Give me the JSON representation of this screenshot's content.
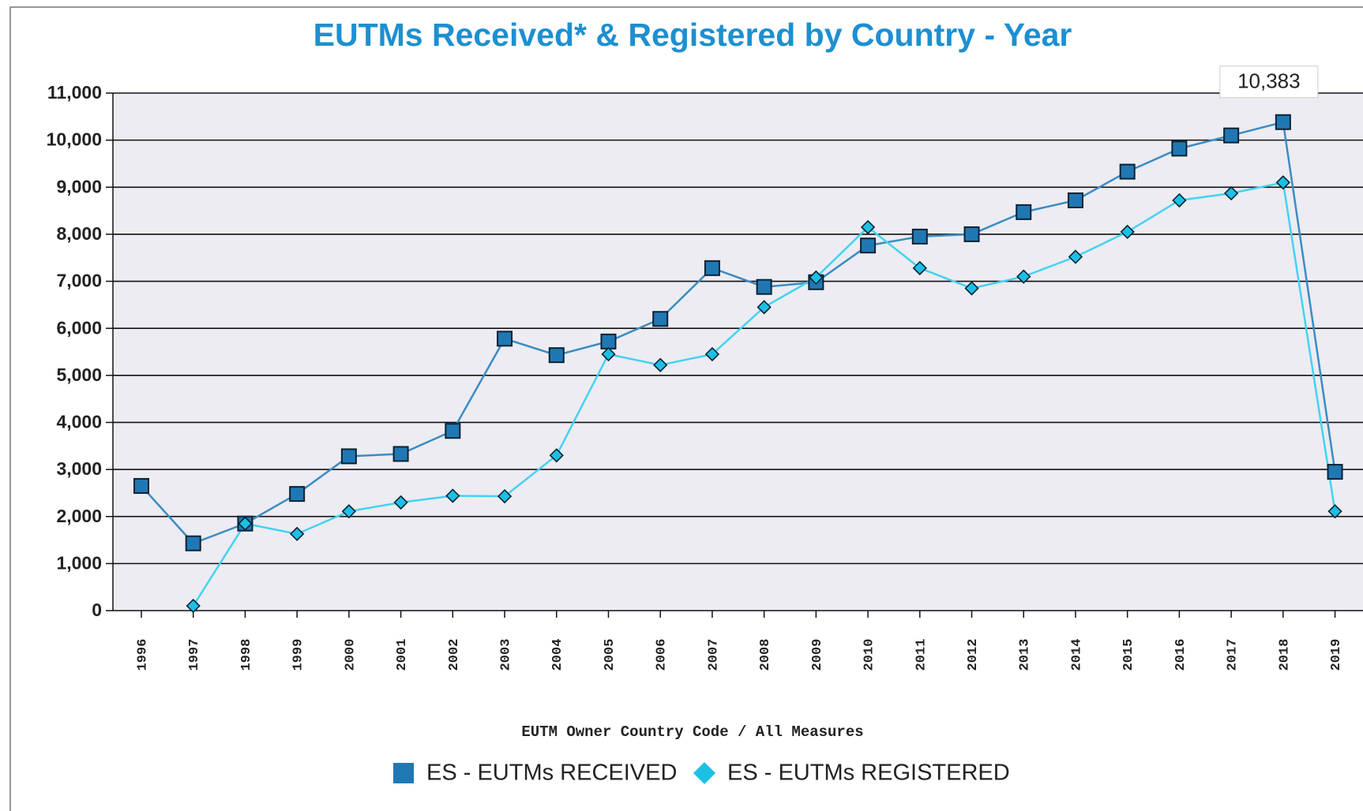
{
  "chart_data": {
    "type": "line",
    "title": "EUTMs Received* & Registered by Country - Year",
    "x_label": "EUTM Owner Country Code / All Measures",
    "categories": [
      "1996",
      "1997",
      "1998",
      "1999",
      "2000",
      "2001",
      "2002",
      "2003",
      "2004",
      "2005",
      "2006",
      "2007",
      "2008",
      "2009",
      "2010",
      "2011",
      "2012",
      "2013",
      "2014",
      "2015",
      "2016",
      "2017",
      "2018",
      "2019"
    ],
    "series": [
      {
        "name": "ES - EUTMs RECEIVED",
        "color": "#1f78b4",
        "line_color": "#3b8cc2",
        "marker": "square",
        "values": [
          2650,
          1430,
          1850,
          2480,
          3280,
          3330,
          3820,
          5780,
          5430,
          5720,
          6200,
          7280,
          6880,
          6980,
          7760,
          7950,
          8000,
          8470,
          8720,
          9330,
          9820,
          10100,
          10383,
          2950
        ],
        "value_labels": [
          null,
          null,
          null,
          null,
          null,
          null,
          null,
          null,
          null,
          null,
          null,
          null,
          null,
          null,
          null,
          null,
          null,
          null,
          null,
          null,
          null,
          null,
          "10,383",
          null
        ]
      },
      {
        "name": "ES - EUTMs REGISTERED",
        "color": "#1cc0e4",
        "line_color": "#44d2f2",
        "marker": "diamond",
        "values": [
          null,
          100,
          1850,
          1630,
          2110,
          2300,
          2440,
          2430,
          3300,
          5450,
          5220,
          5450,
          6450,
          7080,
          8150,
          7280,
          6850,
          7100,
          7520,
          8050,
          8720,
          8870,
          9100,
          2110
        ]
      }
    ],
    "ylim": [
      0,
      11000
    ],
    "yticks": [
      0,
      {
        "value": 1000,
        "label": "1,000"
      },
      {
        "value": 2000,
        "label": "2,000"
      },
      {
        "value": 3000,
        "label": "3,000"
      },
      {
        "value": 4000,
        "label": "4,000"
      },
      {
        "value": 5000,
        "label": "5,000"
      },
      {
        "value": 6000,
        "label": "6,000"
      },
      {
        "value": 7000,
        "label": "7,000"
      },
      {
        "value": 8000,
        "label": "8,000"
      },
      {
        "value": 9000,
        "label": "9,000"
      },
      {
        "value": 10000,
        "label": "10,000"
      },
      {
        "value": 11000,
        "label": "11,000"
      }
    ],
    "grid": true
  }
}
